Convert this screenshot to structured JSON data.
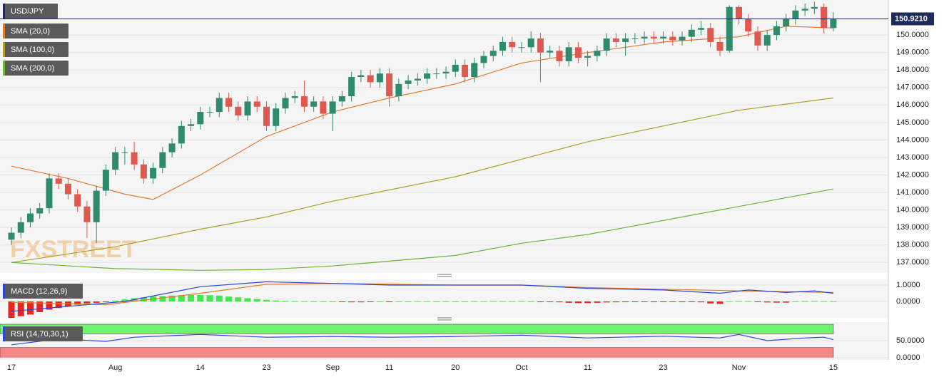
{
  "chart_data": [
    {
      "type": "candlestick",
      "title": "USD/JPY",
      "watermark": "FXSTREET",
      "categories": [
        "17",
        null,
        null,
        null,
        null,
        null,
        null,
        null,
        null,
        null,
        null,
        "Aug",
        null,
        null,
        null,
        null,
        null,
        null,
        null,
        null,
        "14",
        null,
        null,
        null,
        null,
        null,
        null,
        "23",
        null,
        null,
        null,
        null,
        null,
        null,
        "Sep",
        null,
        null,
        null,
        null,
        null,
        "11",
        null,
        null,
        null,
        null,
        null,
        null,
        "20",
        null,
        null,
        null,
        null,
        null,
        null,
        "Oct",
        null,
        null,
        null,
        null,
        null,
        null,
        "11",
        null,
        null,
        null,
        null,
        null,
        null,
        null,
        "23",
        null,
        null,
        null,
        null,
        null,
        null,
        null,
        "Nov",
        null,
        null,
        null,
        null,
        null,
        null,
        null,
        null,
        null,
        "15"
      ],
      "open": [
        138.3,
        138.7,
        139.3,
        139.8,
        140.1,
        141.8,
        141.5,
        140.9,
        140.2,
        139.3,
        141.1,
        142.3,
        143.3,
        143.3,
        142.6,
        141.8,
        142.4,
        143.3,
        143.8,
        144.8,
        144.9,
        145.6,
        145.6,
        146.4,
        145.9,
        145.4,
        146.2,
        145.9,
        144.8,
        145.8,
        146.4,
        146.5,
        145.9,
        146.2,
        145.5,
        146.2,
        146.5,
        147.6,
        147.7,
        147.3,
        147.8,
        146.5,
        147.2,
        147.4,
        147.5,
        147.8,
        147.8,
        147.9,
        148.3,
        147.6,
        148.4,
        148.8,
        149.1,
        149.6,
        149.3,
        149.3,
        149.8,
        149.0,
        149.1,
        148.5,
        149.3,
        148.7,
        148.8,
        149.1,
        149.8,
        149.6,
        149.8,
        149.8,
        149.9,
        149.8,
        149.9,
        149.7,
        149.9,
        150.3,
        150.4,
        149.6,
        149.1,
        151.6,
        150.9,
        150.2,
        149.4,
        150.0,
        150.5,
        150.9,
        151.4,
        151.5,
        151.6,
        150.4
      ],
      "high": [
        139.0,
        139.6,
        140.1,
        140.4,
        142.1,
        142.1,
        141.8,
        141.2,
        140.5,
        141.4,
        142.6,
        143.6,
        143.6,
        143.9,
        142.9,
        142.7,
        143.6,
        144.1,
        145.1,
        145.2,
        145.9,
        145.9,
        146.7,
        146.7,
        146.2,
        146.5,
        146.5,
        146.2,
        146.1,
        146.7,
        146.8,
        147.4,
        146.5,
        146.5,
        146.5,
        146.8,
        147.9,
        148.0,
        148.0,
        148.1,
        148.1,
        147.5,
        147.7,
        147.8,
        148.1,
        148.1,
        148.2,
        148.6,
        148.6,
        148.7,
        149.1,
        149.4,
        149.9,
        149.9,
        149.6,
        150.2,
        150.1,
        149.4,
        149.4,
        149.6,
        149.6,
        149.1,
        149.4,
        150.1,
        150.1,
        150.1,
        150.1,
        150.2,
        150.2,
        150.2,
        150.2,
        150.2,
        150.6,
        150.8,
        150.7,
        149.9,
        151.7,
        151.7,
        151.2,
        150.5,
        150.3,
        150.8,
        151.2,
        151.7,
        151.8,
        151.9,
        151.8,
        151.3
      ],
      "low": [
        138.0,
        138.4,
        139.0,
        139.5,
        139.8,
        141.2,
        140.6,
        139.9,
        138.4,
        138.1,
        140.8,
        142.0,
        142.6,
        142.3,
        141.5,
        141.5,
        142.1,
        143.0,
        143.5,
        144.5,
        144.6,
        145.3,
        145.3,
        145.6,
        145.1,
        145.1,
        145.6,
        144.5,
        144.5,
        145.5,
        146.1,
        145.6,
        145.6,
        145.2,
        144.5,
        145.9,
        146.2,
        147.3,
        147.0,
        147.0,
        145.9,
        146.2,
        146.9,
        147.1,
        147.2,
        147.5,
        147.5,
        147.6,
        147.3,
        147.3,
        148.1,
        148.5,
        148.8,
        149.0,
        149.0,
        149.0,
        147.3,
        148.7,
        148.2,
        148.2,
        148.4,
        148.2,
        148.5,
        148.8,
        149.3,
        148.8,
        149.5,
        149.5,
        149.5,
        149.5,
        149.4,
        149.4,
        149.6,
        150.0,
        149.3,
        148.8,
        149.0,
        150.6,
        149.9,
        149.1,
        149.1,
        149.7,
        150.2,
        150.6,
        151.1,
        151.2,
        150.1,
        150.2
      ],
      "close": [
        138.7,
        139.3,
        139.8,
        140.1,
        141.8,
        141.5,
        140.9,
        140.2,
        139.3,
        141.1,
        142.3,
        143.3,
        143.3,
        142.6,
        141.8,
        142.4,
        143.3,
        143.8,
        144.8,
        144.9,
        145.6,
        145.6,
        146.4,
        145.9,
        145.4,
        146.2,
        145.9,
        144.8,
        145.8,
        146.4,
        146.5,
        145.9,
        146.2,
        145.5,
        146.2,
        146.5,
        147.6,
        147.7,
        147.3,
        147.8,
        146.5,
        147.2,
        147.4,
        147.5,
        147.8,
        147.8,
        147.9,
        148.3,
        147.6,
        148.4,
        148.8,
        149.1,
        149.6,
        149.3,
        149.3,
        149.8,
        149.0,
        149.1,
        148.5,
        149.3,
        148.7,
        148.8,
        149.1,
        149.8,
        149.6,
        149.8,
        149.8,
        149.9,
        149.8,
        149.9,
        149.7,
        149.9,
        150.3,
        150.4,
        149.6,
        149.1,
        151.6,
        150.9,
        150.2,
        149.4,
        150.0,
        150.5,
        150.9,
        151.4,
        151.5,
        151.6,
        150.4,
        150.9
      ],
      "up_color": "#2f8a6e",
      "down_color": "#e0594e",
      "overlays": [
        {
          "name": "SMA (20,0)",
          "color": "#e8782c",
          "x": [
            0,
            6,
            12,
            15,
            20,
            27,
            34,
            40,
            47,
            54,
            61,
            69,
            77,
            82,
            87
          ],
          "values": [
            142.5,
            141.8,
            140.9,
            140.6,
            142.0,
            144.2,
            145.6,
            146.4,
            147.2,
            148.4,
            149.0,
            149.6,
            149.9,
            150.5,
            150.4
          ]
        },
        {
          "name": "SMA (100,0)",
          "color": "#a9a125",
          "x": [
            0,
            11,
            20,
            27,
            34,
            47,
            54,
            61,
            69,
            77,
            87
          ],
          "values": [
            137.0,
            137.9,
            138.9,
            139.6,
            140.5,
            141.9,
            142.9,
            143.9,
            144.8,
            145.7,
            146.4
          ]
        },
        {
          "name": "SMA (200,0)",
          "color": "#6cb33c",
          "x": [
            0,
            11,
            20,
            27,
            34,
            47,
            54,
            61,
            77,
            87
          ],
          "values": [
            137.0,
            136.65,
            136.55,
            136.6,
            136.8,
            137.4,
            138.1,
            138.6,
            140.2,
            141.2
          ]
        }
      ],
      "last_price": {
        "value": 150.921,
        "label": "150.9210"
      },
      "ylim": [
        136.4,
        152.0
      ],
      "yticks": [
        {
          "value": 137,
          "label": "137.0000"
        },
        {
          "value": 138,
          "label": "138.0000"
        },
        {
          "value": 139,
          "label": "139.0000"
        },
        {
          "value": 140,
          "label": "140.0000"
        },
        {
          "value": 141,
          "label": "141.0000"
        },
        {
          "value": 142,
          "label": "142.0000"
        },
        {
          "value": 143,
          "label": "143.0000"
        },
        {
          "value": 144,
          "label": "144.0000"
        },
        {
          "value": 145,
          "label": "145.0000"
        },
        {
          "value": 146,
          "label": "146.0000"
        },
        {
          "value": 147,
          "label": "147.0000"
        },
        {
          "value": 148,
          "label": "148.0000"
        },
        {
          "value": 149,
          "label": "149.0000"
        },
        {
          "value": 150,
          "label": "150.0000"
        }
      ],
      "grid": true
    },
    {
      "type": "macd",
      "title": "MACD (12,26,9)",
      "histogram": {
        "up_color": "#3fe84b",
        "down_color": "#e8261f",
        "values": [
          -1.0,
          -0.9,
          -0.8,
          -0.65,
          -0.5,
          -0.4,
          -0.3,
          -0.2,
          -0.12,
          -0.08,
          -0.04,
          0.05,
          0.12,
          0.2,
          0.25,
          0.3,
          0.33,
          0.36,
          0.38,
          0.4,
          0.4,
          0.38,
          0.36,
          0.3,
          0.25,
          0.2,
          0.15,
          0.1,
          0.06,
          0.04,
          0.02,
          0.02,
          0.01,
          0.01,
          0.01,
          -0.02,
          -0.05,
          -0.05,
          -0.04,
          0.01,
          -0.01,
          0.01,
          0.01,
          0.02,
          0.02,
          0.01,
          0.01,
          0.01,
          0.01,
          0.02,
          0.02,
          0.03,
          0.02,
          0.02,
          0.03,
          0.01,
          -0.03,
          -0.04,
          -0.05,
          -0.08,
          -0.1,
          -0.1,
          -0.08,
          -0.06,
          -0.05,
          -0.04,
          -0.04,
          -0.03,
          -0.03,
          -0.02,
          -0.02,
          -0.01,
          -0.02,
          -0.05,
          -0.12,
          -0.15,
          0.02,
          0.03,
          0.02,
          -0.01,
          -0.06,
          -0.07,
          -0.07,
          0.01,
          0.02,
          0.03,
          0.02,
          0.01
        ]
      },
      "macd": {
        "color": "#2b45d8",
        "x": [
          0,
          12,
          20,
          27,
          34,
          40,
          47,
          54,
          61,
          69,
          75,
          78,
          82,
          85,
          87
        ],
        "values": [
          -0.6,
          0.0,
          0.9,
          1.2,
          1.1,
          1.0,
          1.0,
          1.0,
          0.8,
          0.7,
          0.5,
          0.7,
          0.55,
          0.65,
          0.5
        ]
      },
      "signal": {
        "color": "#e87b2b",
        "x": [
          0,
          10,
          20,
          27,
          34,
          47,
          54,
          61,
          69,
          77,
          87
        ],
        "values": [
          -0.05,
          -0.2,
          0.5,
          1.05,
          1.1,
          1.0,
          1.0,
          0.85,
          0.75,
          0.65,
          0.55
        ]
      },
      "ylim": [
        -1.0,
        1.35
      ],
      "yticks": [
        {
          "value": 0,
          "label": "0.0000"
        },
        {
          "value": 1,
          "label": "1.0000"
        }
      ],
      "grid": true
    },
    {
      "type": "rsi",
      "title": "RSI (14,70,30,1)",
      "overbought": 70,
      "oversold": 30,
      "overbought_color": "#6ef36e",
      "oversold_color": "#f38585",
      "color": "#3045e0",
      "x": [
        0,
        5,
        10,
        13,
        20,
        27,
        34,
        40,
        47,
        54,
        61,
        69,
        75,
        77,
        80,
        84,
        86,
        87
      ],
      "values": [
        38,
        55,
        48,
        60,
        68,
        60,
        62,
        60,
        62,
        66,
        58,
        63,
        58,
        68,
        50,
        58,
        60,
        53
      ],
      "ylim": [
        -6,
        104
      ],
      "yticks": [
        {
          "value": 0,
          "label": "0.0000"
        },
        {
          "value": 50,
          "label": "50.0000"
        }
      ],
      "grid": true
    }
  ]
}
